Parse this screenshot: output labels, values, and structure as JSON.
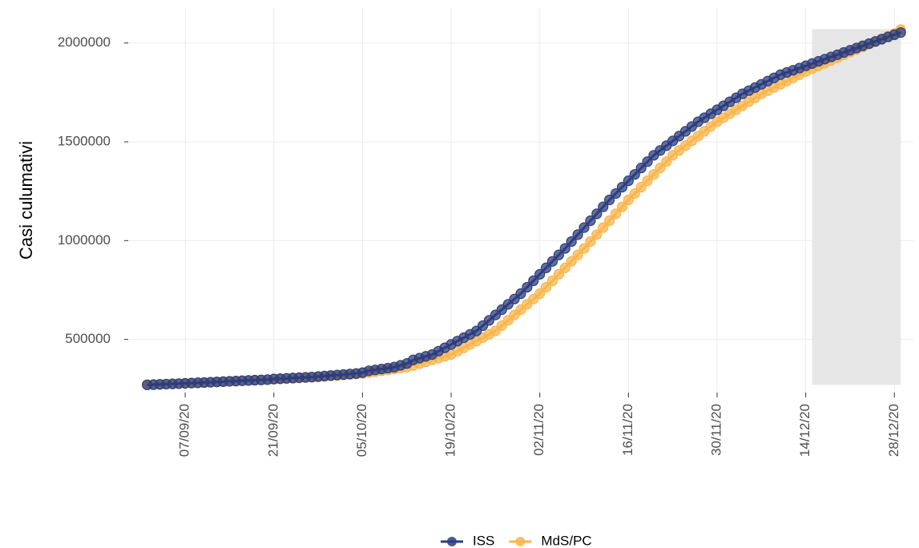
{
  "chart_data": {
    "type": "line",
    "y_label": "Casi culumativi",
    "x": [
      "01/09/20",
      "02/09/20",
      "03/09/20",
      "04/09/20",
      "05/09/20",
      "06/09/20",
      "07/09/20",
      "08/09/20",
      "09/09/20",
      "10/09/20",
      "11/09/20",
      "12/09/20",
      "13/09/20",
      "14/09/20",
      "15/09/20",
      "16/09/20",
      "17/09/20",
      "18/09/20",
      "19/09/20",
      "20/09/20",
      "21/09/20",
      "22/09/20",
      "23/09/20",
      "24/09/20",
      "25/09/20",
      "26/09/20",
      "27/09/20",
      "28/09/20",
      "29/09/20",
      "30/09/20",
      "01/10/20",
      "02/10/20",
      "03/10/20",
      "04/10/20",
      "05/10/20",
      "06/10/20",
      "07/10/20",
      "08/10/20",
      "09/10/20",
      "10/10/20",
      "11/10/20",
      "12/10/20",
      "13/10/20",
      "14/10/20",
      "15/10/20",
      "16/10/20",
      "17/10/20",
      "18/10/20",
      "19/10/20",
      "20/10/20",
      "21/10/20",
      "22/10/20",
      "23/10/20",
      "24/10/20",
      "25/10/20",
      "26/10/20",
      "27/10/20",
      "28/10/20",
      "29/10/20",
      "30/10/20",
      "31/10/20",
      "01/11/20",
      "02/11/20",
      "03/11/20",
      "04/11/20",
      "05/11/20",
      "06/11/20",
      "07/11/20",
      "08/11/20",
      "09/11/20",
      "10/11/20",
      "11/11/20",
      "12/11/20",
      "13/11/20",
      "14/11/20",
      "15/11/20",
      "16/11/20",
      "17/11/20",
      "18/11/20",
      "19/11/20",
      "20/11/20",
      "21/11/20",
      "22/11/20",
      "23/11/20",
      "24/11/20",
      "25/11/20",
      "26/11/20",
      "27/11/20",
      "28/11/20",
      "29/11/20",
      "30/11/20",
      "01/12/20",
      "02/12/20",
      "03/12/20",
      "04/12/20",
      "05/12/20",
      "06/12/20",
      "07/12/20",
      "08/12/20",
      "09/12/20",
      "10/12/20",
      "11/12/20",
      "12/12/20",
      "13/12/20",
      "14/12/20",
      "15/12/20",
      "16/12/20",
      "17/12/20",
      "18/12/20",
      "19/12/20",
      "20/12/20",
      "21/12/20",
      "22/12/20",
      "23/12/20",
      "24/12/20",
      "25/12/20",
      "26/12/20",
      "27/12/20",
      "28/12/20",
      "29/12/20"
    ],
    "series": [
      {
        "name": "MdS/PC",
        "color": "#f9b54c",
        "values": [
          270189,
          271430,
          272671,
          273912,
          275152,
          276393,
          277634,
          279080,
          280525,
          281971,
          283417,
          284862,
          286308,
          287753,
          289239,
          290725,
          292211,
          293697,
          295184,
          296670,
          298156,
          299829,
          301503,
          303176,
          304850,
          306523,
          308197,
          309870,
          312401,
          314931,
          317462,
          319993,
          322524,
          325055,
          327586,
          332155,
          336724,
          341293,
          345862,
          350431,
          355000,
          359569,
          368713,
          377857,
          387001,
          396145,
          405290,
          414434,
          423578,
          440608,
          457638,
          474669,
          491699,
          508729,
          525759,
          542789,
          569760,
          596731,
          623703,
          650674,
          677645,
          704617,
          731588,
          764272,
          796956,
          829639,
          862323,
          895006,
          927690,
          960373,
          995446,
          1030519,
          1065591,
          1100664,
          1135736,
          1170809,
          1205881,
          1238154,
          1270427,
          1302700,
          1334974,
          1367247,
          1399521,
          1431795,
          1456046,
          1480297,
          1504548,
          1528800,
          1553051,
          1577302,
          1601554,
          1621697,
          1641840,
          1661983,
          1682127,
          1702270,
          1722413,
          1742557,
          1758726,
          1774894,
          1791063,
          1807231,
          1823400,
          1839568,
          1855737,
          1869658,
          1883579,
          1897500,
          1911421,
          1925343,
          1939264,
          1953185,
          1966687,
          1980188,
          1993690,
          2007191,
          2020693,
          2034194,
          2047696,
          2067487
        ]
      },
      {
        "name": "ISS",
        "color": "#2c3e7e",
        "values": [
          270189,
          271430,
          272671,
          273912,
          275152,
          276393,
          277634,
          279080,
          280525,
          281971,
          283417,
          284862,
          286308,
          287753,
          289239,
          290725,
          292211,
          293697,
          295184,
          296670,
          299829,
          301503,
          303176,
          304850,
          306523,
          308197,
          309870,
          312401,
          314931,
          317462,
          319993,
          322524,
          325055,
          327586,
          332155,
          341293,
          345862,
          350431,
          355000,
          359569,
          368713,
          377857,
          396145,
          405290,
          414434,
          423578,
          440608,
          457638,
          474669,
          491699,
          508729,
          525759,
          542789,
          569760,
          596731,
          623703,
          650674,
          677645,
          704617,
          731588,
          764272,
          796956,
          829639,
          862323,
          895006,
          927690,
          960373,
          995446,
          1030519,
          1065591,
          1100664,
          1135736,
          1170809,
          1205881,
          1238154,
          1270427,
          1302700,
          1334974,
          1367247,
          1399521,
          1431795,
          1456046,
          1480297,
          1504548,
          1528800,
          1553051,
          1577302,
          1601554,
          1621697,
          1641840,
          1661983,
          1682127,
          1702270,
          1722413,
          1742557,
          1758726,
          1774894,
          1791063,
          1807231,
          1823400,
          1839568,
          1850801,
          1862034,
          1873267,
          1884500,
          1895733,
          1906966,
          1918199,
          1929432,
          1940665,
          1951898,
          1963131,
          1974364,
          1985597,
          1996830,
          2008063,
          2019296,
          2030529,
          2041762,
          2053000
        ]
      }
    ],
    "xlim": [
      "29/08/20",
      "31/12/20"
    ],
    "xticks": [
      "07/09/20",
      "21/09/20",
      "05/10/20",
      "19/10/20",
      "02/11/20",
      "16/11/20",
      "30/11/20",
      "14/12/20",
      "28/12/20"
    ],
    "ylim": [
      231000,
      2177000
    ],
    "yticks": [
      500000,
      1000000,
      1500000,
      2000000
    ],
    "grid": true,
    "legend": "bottom",
    "highlight": {
      "x": [
        "15/12/20",
        "29/12/20"
      ],
      "y": [
        270000,
        2070000
      ],
      "color": "#e6e6e6"
    }
  }
}
